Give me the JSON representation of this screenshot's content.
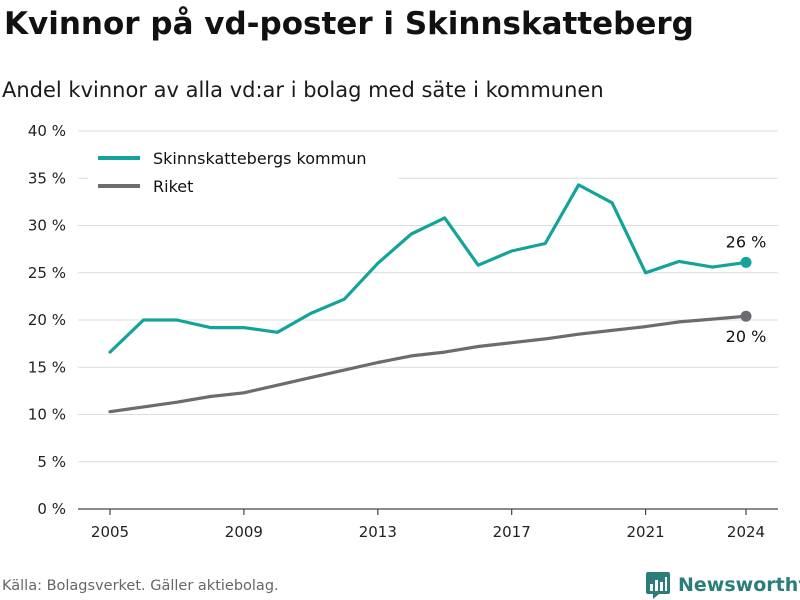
{
  "header": {
    "title": "Kvinnor på vd-poster i Skinnskatteberg",
    "subtitle": "Andel kvinnor av alla vd:ar i bolag med säte i kommunen"
  },
  "footer": {
    "source": "Källa: Bolagsverket. Gäller aktiebolag.",
    "brand": "Newsworthy"
  },
  "chart_data": {
    "type": "line",
    "x": [
      2005,
      2006,
      2007,
      2008,
      2009,
      2010,
      2011,
      2012,
      2013,
      2014,
      2015,
      2016,
      2017,
      2018,
      2019,
      2020,
      2021,
      2022,
      2023,
      2024
    ],
    "xticks": [
      2005,
      2009,
      2013,
      2017,
      2021,
      2024
    ],
    "xtick_labels": [
      "2005",
      "2009",
      "2013",
      "2017",
      "2021",
      "2024"
    ],
    "ylim": [
      0,
      40
    ],
    "yticks": [
      0,
      5,
      10,
      15,
      20,
      25,
      30,
      35,
      40
    ],
    "ytick_labels": [
      "0 %",
      "5 %",
      "10 %",
      "15 %",
      "20 %",
      "25 %",
      "30 %",
      "35 %",
      "40 %"
    ],
    "grid": "horizontal",
    "legend_position": "top-left",
    "series": [
      {
        "name": "Skinnskattebergs kommun",
        "color": "#13a39a",
        "values": [
          16.6,
          20.0,
          20.0,
          19.2,
          19.2,
          18.7,
          20.7,
          22.2,
          26.0,
          29.1,
          30.8,
          25.8,
          27.3,
          28.1,
          34.3,
          32.4,
          25.0,
          26.2,
          25.6,
          26.1
        ],
        "end_label": "26 %"
      },
      {
        "name": "Riket",
        "color": "#6c6b70",
        "values": [
          10.3,
          10.8,
          11.3,
          11.9,
          12.3,
          13.1,
          13.9,
          14.7,
          15.5,
          16.2,
          16.6,
          17.2,
          17.6,
          18.0,
          18.5,
          18.9,
          19.3,
          19.8,
          20.1,
          20.4
        ],
        "end_label": "20 %"
      }
    ]
  }
}
